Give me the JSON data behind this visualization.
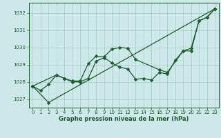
{
  "xlabel": "Graphe pression niveau de la mer (hPa)",
  "bg_color": "#cce8e8",
  "grid_color": "#aacccc",
  "line_color": "#1a5c2a",
  "markersize": 2.5,
  "linewidth": 0.9,
  "ylim": [
    1026.5,
    1032.6
  ],
  "xlim": [
    -0.5,
    23.5
  ],
  "yticks": [
    1027,
    1028,
    1029,
    1030,
    1031,
    1032
  ],
  "xticks": [
    0,
    1,
    2,
    3,
    4,
    5,
    6,
    7,
    8,
    9,
    10,
    11,
    12,
    13,
    14,
    15,
    16,
    17,
    18,
    19,
    20,
    21,
    22,
    23
  ],
  "line1_x": [
    0,
    3,
    4,
    5,
    6,
    7,
    8,
    9,
    10,
    11,
    12,
    13,
    16,
    17,
    19,
    20,
    21,
    22,
    23
  ],
  "line1_y": [
    1027.75,
    1028.4,
    1028.2,
    1028.05,
    1028.05,
    1029.05,
    1029.5,
    1029.45,
    1029.9,
    1030.0,
    1029.95,
    1029.3,
    1028.7,
    1028.55,
    1029.8,
    1029.95,
    1031.55,
    1031.75,
    1032.25
  ],
  "line2_x": [
    0,
    1,
    2,
    3,
    4,
    5,
    6,
    7,
    8,
    9,
    10,
    11,
    12,
    13,
    14,
    15,
    16,
    17,
    18,
    19,
    20,
    21,
    22,
    23
  ],
  "line2_y": [
    1027.75,
    1027.5,
    1027.85,
    1028.4,
    1028.2,
    1028.0,
    1028.0,
    1028.2,
    1029.2,
    1029.4,
    1029.1,
    1028.85,
    1028.75,
    1028.15,
    1028.2,
    1028.1,
    1028.55,
    1028.45,
    1029.25,
    1029.8,
    1029.8,
    1031.55,
    1031.75,
    1032.25
  ],
  "line3_x": [
    0,
    2,
    23
  ],
  "line3_y": [
    1027.75,
    1026.8,
    1032.25
  ]
}
